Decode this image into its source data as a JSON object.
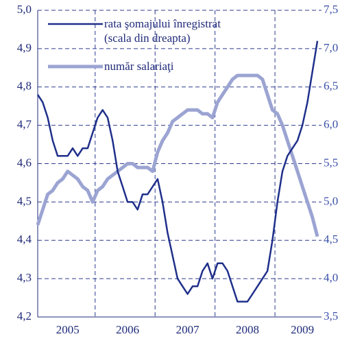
{
  "chart_data": {
    "type": "line",
    "categories": [
      null,
      null,
      null,
      null,
      null,
      null,
      "2005",
      null,
      null,
      null,
      null,
      null,
      null,
      null,
      null,
      null,
      null,
      null,
      "2006",
      null,
      null,
      null,
      null,
      null,
      null,
      null,
      null,
      null,
      null,
      null,
      "2007",
      null,
      null,
      null,
      null,
      null,
      null,
      null,
      null,
      null,
      null,
      null,
      "2008",
      null,
      null,
      null,
      null,
      null,
      null,
      null,
      null,
      null,
      null,
      "2009",
      null,
      null,
      null
    ],
    "series": [
      {
        "name": "rata şomajului înregistrat\n(scala din dreapta)",
        "color": "#1f2f8a",
        "axis": "y2",
        "values": [
          6.4,
          6.3,
          6.1,
          5.8,
          5.6,
          5.6,
          5.6,
          5.7,
          5.6,
          5.7,
          5.7,
          5.9,
          6.1,
          6.2,
          6.1,
          5.8,
          5.4,
          5.2,
          5.0,
          5.0,
          4.9,
          5.1,
          5.1,
          5.2,
          5.3,
          5.0,
          4.6,
          4.3,
          4.0,
          3.9,
          3.8,
          3.9,
          3.9,
          4.1,
          4.2,
          4.0,
          4.2,
          4.2,
          4.1,
          3.9,
          3.7,
          3.7,
          3.7,
          3.8,
          3.9,
          4.0,
          4.1,
          4.5,
          5.0,
          5.4,
          5.6,
          5.7,
          5.8,
          6.0,
          6.3,
          6.7,
          7.1
        ]
      },
      {
        "name": "număr salariaţi",
        "color": "#9ba4d2",
        "values": [
          4.44,
          4.48,
          4.52,
          4.53,
          4.55,
          4.56,
          4.58,
          4.57,
          4.56,
          4.54,
          4.53,
          4.5,
          4.53,
          4.54,
          4.56,
          4.57,
          4.58,
          4.59,
          4.6,
          4.6,
          4.59,
          4.59,
          4.59,
          4.58,
          4.63,
          4.66,
          4.68,
          4.71,
          4.72,
          4.73,
          4.74,
          4.74,
          4.74,
          4.73,
          4.73,
          4.72,
          4.76,
          4.78,
          4.8,
          4.82,
          4.83,
          4.83,
          4.83,
          4.83,
          4.83,
          4.82,
          4.78,
          4.74,
          4.73,
          4.7,
          4.66,
          4.62,
          4.58,
          4.54,
          4.5,
          4.46,
          4.41
        ]
      }
    ],
    "ylim": [
      4.2,
      5.0
    ],
    "yticks": [
      {
        "value": 4.2,
        "label": "4,2"
      },
      {
        "value": 4.3,
        "label": "4,3"
      },
      {
        "value": 4.4,
        "label": "4,4"
      },
      {
        "value": 4.5,
        "label": "4,5"
      },
      {
        "value": 4.6,
        "label": "4,6"
      },
      {
        "value": 4.7,
        "label": "4,7"
      },
      {
        "value": 4.8,
        "label": "4,8"
      },
      {
        "value": 4.9,
        "label": "4,9"
      },
      {
        "value": 5.0,
        "label": "5,0"
      }
    ],
    "y2lim": [
      3.5,
      7.5
    ],
    "y2ticks": [
      {
        "value": 3.5,
        "label": "3,5"
      },
      {
        "value": 4.0,
        "label": "4,0"
      },
      {
        "value": 4.5,
        "label": "4,5"
      },
      {
        "value": 5.0,
        "label": "5,0"
      },
      {
        "value": 5.5,
        "label": "5,5"
      },
      {
        "value": 6.0,
        "label": "6,0"
      },
      {
        "value": 6.5,
        "label": "6,5"
      },
      {
        "value": 7.0,
        "label": "7,0"
      },
      {
        "value": 7.5,
        "label": "7,5"
      }
    ],
    "grid": true
  }
}
